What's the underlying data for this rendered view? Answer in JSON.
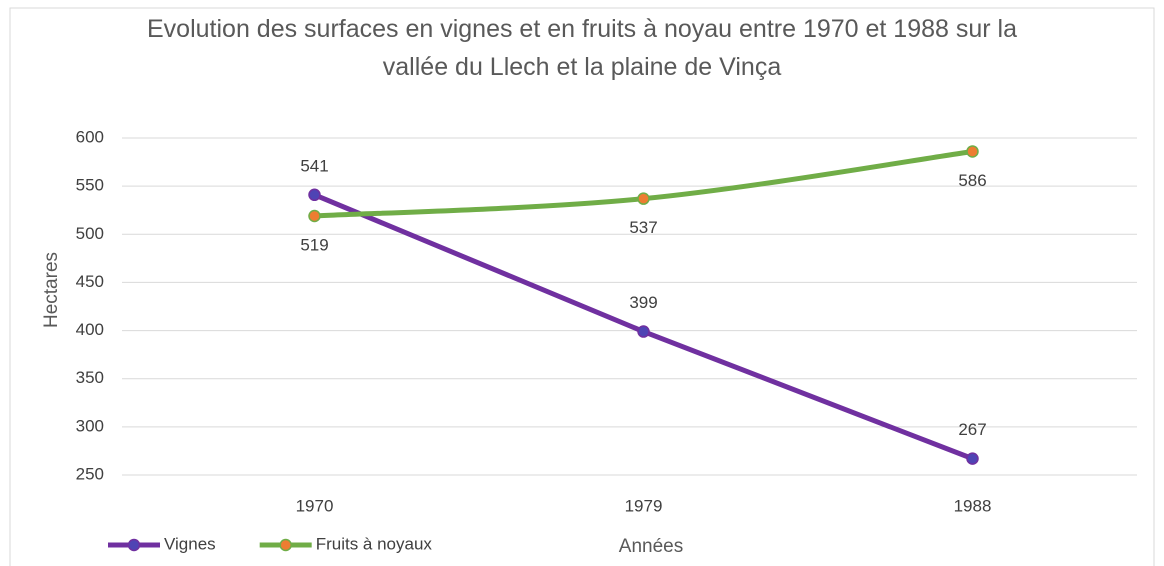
{
  "chart_data": {
    "type": "line",
    "title": "Evolution des surfaces en vignes et en fruits à noyau entre 1970 et 1988 sur la vallée du Llech et la plaine de Vinça",
    "xlabel": "Années",
    "ylabel": "Hectares",
    "categories": [
      "1970",
      "1979",
      "1988"
    ],
    "series": [
      {
        "name": "Vignes",
        "color": "#7030a0",
        "marker_color": "#4f44b4",
        "values": [
          541,
          399,
          267
        ],
        "label_position": "above",
        "smooth": false
      },
      {
        "name": "Fruits à noyaux",
        "color": "#70ad47",
        "marker_color": "#ed7d31",
        "values": [
          519,
          537,
          586
        ],
        "label_position": "below",
        "smooth": true
      }
    ],
    "ylim": [
      250,
      600
    ],
    "yticks": [
      250,
      300,
      350,
      400,
      450,
      500,
      550,
      600
    ],
    "grid": true,
    "legend": "bottom-left"
  }
}
